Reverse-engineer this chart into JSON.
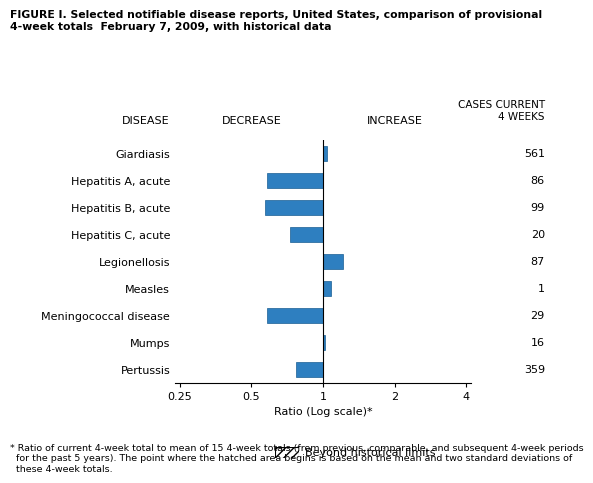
{
  "title_line1": "FIGURE I. Selected notifiable disease reports, United States, comparison of provisional",
  "title_line2": "4-week totals  February 7, 2009, with historical data",
  "diseases": [
    "Giardiasis",
    "Hepatitis A, acute",
    "Hepatitis B, acute",
    "Hepatitis C, acute",
    "Legionellosis",
    "Measles",
    "Meningococcal disease",
    "Mumps",
    "Pertussis"
  ],
  "ratios": [
    1.04,
    0.58,
    0.57,
    0.73,
    1.22,
    1.08,
    0.58,
    1.02,
    0.77
  ],
  "cases": [
    561,
    86,
    99,
    20,
    87,
    1,
    29,
    16,
    359
  ],
  "bar_color": "#2E7FC0",
  "bar_edge_color": "#1a5f94",
  "xlabel": "Ratio (Log scale)*",
  "xticks_values": [
    0.25,
    0.5,
    1.0,
    2.0,
    4.0
  ],
  "xticks_labels": [
    "0.25",
    "0.5",
    "1",
    "2",
    "4"
  ],
  "decrease_label": "DECREASE",
  "increase_label": "INCREASE",
  "disease_label": "DISEASE",
  "cases_label": "CASES CURRENT\n4 WEEKS",
  "footnote_line1": "* Ratio of current 4-week total to mean of 15 4-week totals (from previous, comparable, and subsequent 4-week periods",
  "footnote_line2": "  for the past 5 years). The point where the hatched area begins is based on the mean and two standard deviations of",
  "footnote_line3": "  these 4-week totals.",
  "legend_label": "Beyond historical limits",
  "background_color": "#ffffff"
}
